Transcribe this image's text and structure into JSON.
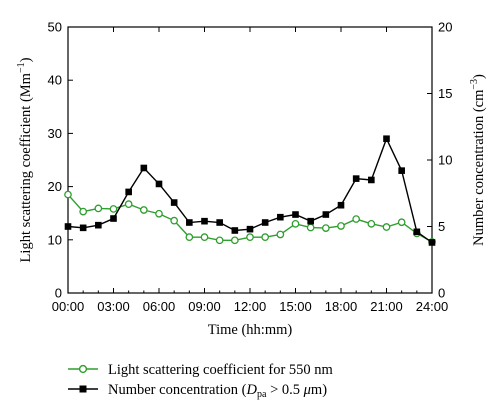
{
  "chart_data": {
    "type": "line",
    "x": [
      0,
      1,
      2,
      3,
      4,
      5,
      6,
      7,
      8,
      9,
      10,
      11,
      12,
      13,
      14,
      15,
      16,
      17,
      18,
      19,
      20,
      21,
      22,
      23,
      24
    ],
    "xlim": [
      0,
      24
    ],
    "xticks": [
      "00:00",
      "03:00",
      "06:00",
      "09:00",
      "12:00",
      "15:00",
      "18:00",
      "21:00",
      "24:00"
    ],
    "xlabel": "Time (hh:mm)",
    "y_left": {
      "label_main": "Light scattering coefficient (Mm",
      "label_sup": "−1",
      "label_close": ")",
      "lim": [
        0,
        50
      ],
      "ticks": [
        "0",
        "10",
        "20",
        "30",
        "40",
        "50"
      ]
    },
    "y_right": {
      "label_main": "Number concentration (cm",
      "label_sup": "−3",
      "label_close": ")",
      "lim": [
        0,
        20
      ],
      "ticks": [
        "0",
        "5",
        "10",
        "15",
        "20"
      ]
    },
    "series": [
      {
        "name": "Light scattering coefficient for 550 nm",
        "axis": "left",
        "color": "#2e9e2e",
        "marker": "open-circle",
        "values": [
          18.5,
          15.3,
          15.9,
          15.8,
          16.7,
          15.6,
          14.9,
          13.6,
          10.5,
          10.5,
          9.9,
          9.9,
          10.5,
          10.5,
          11.0,
          13.0,
          12.3,
          12.2,
          12.6,
          13.9,
          13.0,
          12.4,
          13.3,
          11.2,
          9.6
        ]
      },
      {
        "name": "Number concentration (Dpa > 0.5 μm)",
        "axis": "right",
        "color": "#000000",
        "marker": "filled-square",
        "values": [
          5.0,
          4.9,
          5.1,
          5.6,
          7.6,
          9.4,
          8.2,
          6.8,
          5.3,
          5.4,
          5.3,
          4.7,
          4.8,
          5.3,
          5.7,
          5.9,
          5.4,
          5.9,
          6.6,
          8.6,
          8.5,
          11.6,
          9.2,
          4.6,
          3.8
        ]
      }
    ],
    "legend": {
      "position": "bottom",
      "items": [
        {
          "text": "Light scattering coefficient for 550 nm"
        },
        {
          "pre": "Number concentration (",
          "italic": "D",
          "sub": "pa",
          "post": " > 0.5 ",
          "mu": "μ",
          "unit": "m)"
        }
      ]
    }
  }
}
